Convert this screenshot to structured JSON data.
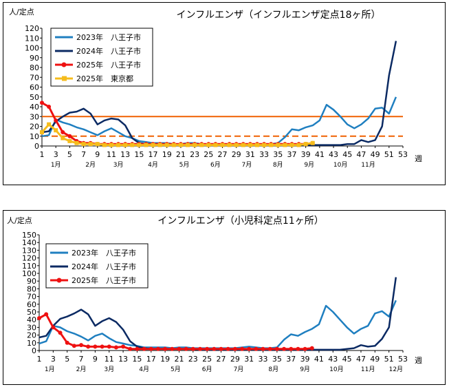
{
  "colors": {
    "series_2023": "#1f7fc0",
    "series_2024": "#0b2a63",
    "series_2025_hachioji": "#ee1111",
    "series_2025_tokyo": "#f5bc1c",
    "threshold_warning": "#f06000",
    "threshold_advisory": "#f06000"
  },
  "chart_data": [
    {
      "type": "line",
      "title": "インフルエンザ（インフルエンザ定点18ヶ所）",
      "ylabel": "人/定点",
      "xlabel": "週",
      "ylim": [
        0,
        120
      ],
      "yticks": [
        0,
        10,
        20,
        30,
        40,
        50,
        60,
        70,
        80,
        90,
        100,
        110,
        120
      ],
      "xlim": [
        1,
        53
      ],
      "xticks": [
        1,
        3,
        5,
        7,
        9,
        11,
        13,
        15,
        17,
        19,
        21,
        23,
        25,
        27,
        29,
        31,
        33,
        35,
        37,
        39,
        41,
        43,
        45,
        47,
        49,
        51,
        53
      ],
      "months": [
        {
          "label": "1月",
          "week": 3
        },
        {
          "label": "2月",
          "week": 8
        },
        {
          "label": "3月",
          "week": 12
        },
        {
          "label": "4月",
          "week": 17
        },
        {
          "label": "5月",
          "week": 21.5
        },
        {
          "label": "6月",
          "week": 26
        },
        {
          "label": "7月",
          "week": 30.5
        },
        {
          "label": "8月",
          "week": 35
        },
        {
          "label": "9月",
          "week": 39.5
        },
        {
          "label": "10月",
          "week": 44
        },
        {
          "label": "11月",
          "week": 48
        }
      ],
      "thresholds": [
        {
          "value": 30,
          "style": "solid"
        },
        {
          "value": 10,
          "style": "dashed"
        }
      ],
      "legend_position": "top-left",
      "series": [
        {
          "name": "2023年　八王子市",
          "color_key": "series_2023",
          "marker": "none",
          "x": [
            1,
            2,
            3,
            4,
            5,
            6,
            7,
            8,
            9,
            10,
            11,
            12,
            13,
            14,
            15,
            16,
            17,
            18,
            19,
            20,
            21,
            22,
            23,
            24,
            25,
            26,
            27,
            28,
            29,
            30,
            31,
            32,
            33,
            34,
            35,
            36,
            37,
            38,
            39,
            40,
            41,
            42,
            43,
            44,
            45,
            46,
            47,
            48,
            49,
            50,
            51,
            52
          ],
          "values": [
            10,
            11,
            27,
            24,
            22,
            19,
            17,
            14,
            11,
            15,
            18,
            14,
            10,
            8,
            5,
            4,
            3,
            3,
            3,
            2,
            2,
            3,
            3,
            2,
            2,
            2,
            2,
            2,
            2,
            2,
            2,
            2,
            2,
            2,
            3,
            9,
            17,
            16,
            19,
            21,
            26,
            42,
            37,
            30,
            22,
            18,
            22,
            28,
            38,
            39,
            33,
            50
          ]
        },
        {
          "name": "2024年　八王子市",
          "color_key": "series_2024",
          "marker": "none",
          "x": [
            1,
            2,
            3,
            4,
            5,
            6,
            7,
            8,
            9,
            10,
            11,
            12,
            13,
            14,
            15,
            16,
            17,
            18,
            19,
            20,
            21,
            22,
            23,
            24,
            25,
            26,
            27,
            28,
            29,
            30,
            31,
            32,
            33,
            34,
            35,
            36,
            37,
            38,
            39,
            40,
            41,
            42,
            43,
            44,
            45,
            46,
            47,
            48,
            49,
            50,
            51,
            52
          ],
          "values": [
            14,
            15,
            25,
            30,
            34,
            35,
            38,
            33,
            22,
            26,
            28,
            27,
            21,
            8,
            3,
            2,
            2,
            2,
            2,
            2,
            2,
            2,
            2,
            1,
            1,
            1,
            1,
            1,
            1,
            1,
            1,
            1,
            1,
            1,
            1,
            1,
            1,
            1,
            1,
            1,
            1,
            1,
            1,
            1,
            2,
            2,
            6,
            4,
            6,
            20,
            72,
            107
          ]
        },
        {
          "name": "2025年　八王子市",
          "color_key": "series_2025_hachioji",
          "marker": "circle",
          "x": [
            1,
            2,
            3,
            4,
            5,
            6,
            7,
            8,
            9,
            10,
            11,
            12,
            13,
            14,
            15,
            16,
            17,
            18,
            19,
            20,
            21,
            22,
            23,
            24,
            25,
            26,
            27,
            28,
            29,
            30,
            31,
            32,
            33,
            34,
            35,
            36,
            37,
            38,
            39,
            40
          ],
          "values": [
            44,
            40,
            26,
            14,
            10,
            5,
            3,
            3,
            2,
            2,
            2,
            2,
            2,
            2,
            2,
            2,
            2,
            2,
            2,
            2,
            2,
            2,
            2,
            2,
            2,
            2,
            2,
            2,
            2,
            2,
            2,
            2,
            2,
            2,
            2,
            2,
            2,
            2,
            2,
            3
          ]
        },
        {
          "name": "2025年　東京都",
          "color_key": "series_2025_tokyo",
          "marker": "square",
          "x": [
            1,
            2,
            3,
            4,
            5,
            6,
            7,
            8,
            9,
            10,
            11,
            12,
            13,
            14,
            15,
            16,
            17,
            18,
            19,
            20,
            21,
            22,
            23,
            24,
            25,
            26,
            27,
            28,
            29,
            30,
            31,
            32,
            33,
            34,
            35,
            36,
            37,
            38,
            39,
            40
          ],
          "values": [
            14,
            22,
            16,
            8,
            5,
            3,
            2,
            2,
            2,
            1,
            1,
            1,
            1,
            1,
            1,
            1,
            1,
            1,
            1,
            1,
            1,
            1,
            1,
            1,
            1,
            1,
            1,
            1,
            1,
            1,
            1,
            1,
            1,
            1,
            1,
            1,
            1,
            1,
            2,
            3
          ]
        }
      ]
    },
    {
      "type": "line",
      "title": "インフルエンザ（小児科定点11ヶ所）",
      "ylabel": "人/定点",
      "xlabel": "週",
      "ylim": [
        0,
        150
      ],
      "yticks": [
        0,
        10,
        20,
        30,
        40,
        50,
        60,
        70,
        80,
        90,
        100,
        110,
        120,
        130,
        140,
        150
      ],
      "xlim": [
        1,
        53
      ],
      "xticks": [
        1,
        3,
        5,
        7,
        9,
        11,
        13,
        15,
        17,
        19,
        21,
        23,
        25,
        27,
        29,
        31,
        33,
        35,
        37,
        39,
        41,
        43,
        45,
        47,
        49,
        51,
        53
      ],
      "months": [
        {
          "label": "1月",
          "week": 2.5
        },
        {
          "label": "2月",
          "week": 7
        },
        {
          "label": "3月",
          "week": 11
        },
        {
          "label": "4月",
          "week": 16
        },
        {
          "label": "5月",
          "week": 20.5
        },
        {
          "label": "6月",
          "week": 25
        },
        {
          "label": "7月",
          "week": 29.5
        },
        {
          "label": "8月",
          "week": 34.5
        },
        {
          "label": "9月",
          "week": 39
        },
        {
          "label": "10月",
          "week": 43.5
        },
        {
          "label": "11月",
          "week": 48
        },
        {
          "label": "12月",
          "week": 52
        }
      ],
      "thresholds": [],
      "legend_position": "top-left",
      "series": [
        {
          "name": "2023年　八王子市",
          "color_key": "series_2023",
          "marker": "none",
          "x": [
            1,
            2,
            3,
            4,
            5,
            6,
            7,
            8,
            9,
            10,
            11,
            12,
            13,
            14,
            15,
            16,
            17,
            18,
            19,
            20,
            21,
            22,
            23,
            24,
            25,
            26,
            27,
            28,
            29,
            30,
            31,
            32,
            33,
            34,
            35,
            36,
            37,
            38,
            39,
            40,
            41,
            42,
            43,
            44,
            45,
            46,
            47,
            48,
            49,
            50,
            51,
            52
          ],
          "values": [
            9,
            12,
            32,
            30,
            25,
            22,
            18,
            13,
            19,
            22,
            16,
            11,
            9,
            7,
            6,
            4,
            4,
            4,
            4,
            3,
            4,
            4,
            3,
            3,
            3,
            3,
            3,
            3,
            3,
            4,
            5,
            4,
            3,
            3,
            4,
            14,
            21,
            19,
            24,
            28,
            34,
            58,
            50,
            40,
            30,
            22,
            28,
            32,
            48,
            51,
            44,
            65
          ]
        },
        {
          "name": "2024年　八王子市",
          "color_key": "series_2024",
          "marker": "none",
          "x": [
            1,
            2,
            3,
            4,
            5,
            6,
            7,
            8,
            9,
            10,
            11,
            12,
            13,
            14,
            15,
            16,
            17,
            18,
            19,
            20,
            21,
            22,
            23,
            24,
            25,
            26,
            27,
            28,
            29,
            30,
            31,
            32,
            33,
            34,
            35,
            36,
            37,
            38,
            39,
            40,
            41,
            42,
            43,
            44,
            45,
            46,
            47,
            48,
            49,
            50,
            51,
            52
          ],
          "values": [
            17,
            19,
            32,
            41,
            44,
            48,
            53,
            47,
            32,
            38,
            42,
            37,
            27,
            12,
            5,
            3,
            2,
            2,
            2,
            2,
            2,
            2,
            2,
            1,
            1,
            1,
            1,
            1,
            1,
            1,
            1,
            1,
            1,
            1,
            1,
            1,
            1,
            1,
            1,
            1,
            1,
            1,
            1,
            1,
            2,
            3,
            7,
            5,
            6,
            15,
            30,
            95
          ]
        },
        {
          "name": "2025年　八王子市",
          "color_key": "series_2025_hachioji",
          "marker": "circle",
          "x": [
            1,
            2,
            3,
            4,
            5,
            6,
            7,
            8,
            9,
            10,
            11,
            12,
            13,
            14,
            15,
            16,
            17,
            18,
            19,
            20,
            21,
            22,
            23,
            24,
            25,
            26,
            27,
            28,
            29,
            30,
            31,
            32,
            33,
            34,
            35,
            36,
            37,
            38,
            39,
            40
          ],
          "values": [
            42,
            47,
            30,
            23,
            10,
            6,
            7,
            5,
            5,
            5,
            5,
            4,
            5,
            2,
            2,
            2,
            2,
            2,
            2,
            2,
            2,
            2,
            2,
            2,
            2,
            2,
            2,
            2,
            2,
            2,
            2,
            2,
            2,
            2,
            2,
            2,
            2,
            2,
            2,
            3
          ]
        }
      ]
    }
  ]
}
